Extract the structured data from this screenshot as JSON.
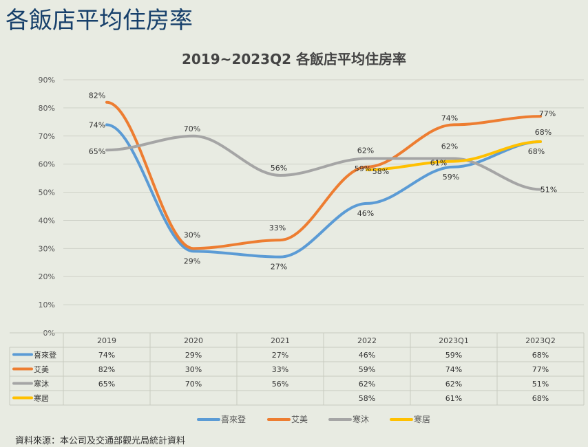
{
  "page_title": "各飯店平均住房率",
  "source": "資料來源：本公司及交通部觀光局統計資料",
  "chart_data": {
    "type": "line",
    "title": "2019~2023Q2 各飯店平均住房率",
    "categories": [
      "2019",
      "2020",
      "2021",
      "2022",
      "2023Q1",
      "2023Q2"
    ],
    "yticks": [
      "0%",
      "10%",
      "20%",
      "30%",
      "40%",
      "50%",
      "60%",
      "70%",
      "80%",
      "90%"
    ],
    "ylim": [
      0,
      90
    ],
    "grid": true,
    "legend": "bottom",
    "series": [
      {
        "name": "喜來登",
        "color": "#5b9bd5",
        "values": [
          74,
          29,
          27,
          46,
          59,
          68
        ],
        "labels": [
          "74%",
          "29%",
          "27%",
          "46%",
          "59%",
          "68%"
        ]
      },
      {
        "name": "艾美",
        "color": "#ed7d31",
        "values": [
          82,
          30,
          33,
          59,
          74,
          77
        ],
        "labels": [
          "82%",
          "30%",
          "33%",
          "59%",
          "74%",
          "77%"
        ]
      },
      {
        "name": "寒沐",
        "color": "#a5a5a5",
        "values": [
          65,
          70,
          56,
          62,
          62,
          51
        ],
        "labels": [
          "65%",
          "70%",
          "56%",
          "62%",
          "62%",
          "51%"
        ]
      },
      {
        "name": "寒居",
        "color": "#ffc000",
        "values": [
          null,
          null,
          null,
          58,
          61,
          68
        ],
        "labels": [
          "",
          "",
          "",
          "58%",
          "61%",
          "68%"
        ]
      }
    ]
  }
}
